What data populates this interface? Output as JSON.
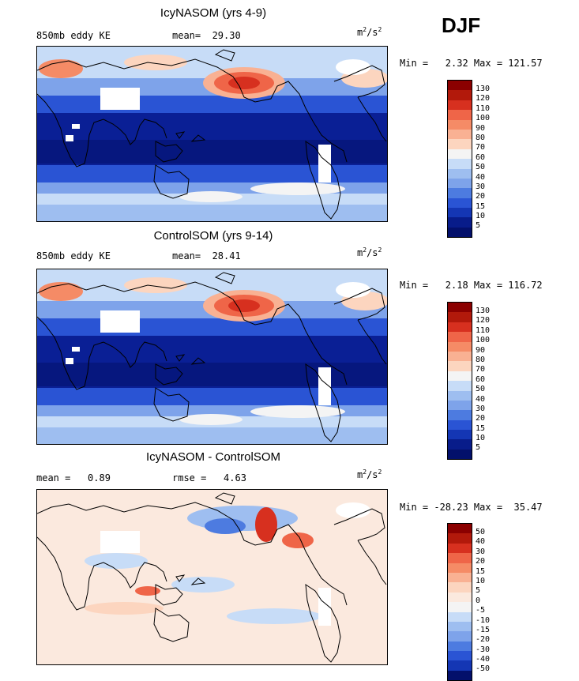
{
  "season": "DJF",
  "panels": [
    {
      "title": "IcyNASOM (yrs 4-9)",
      "left_label": "850mb eddy KE",
      "middle_label": "mean=  29.30",
      "units_base": "m",
      "units_exp1": "2",
      "units_mid": "/s",
      "units_exp2": "2",
      "minmax": "Min =   2.32 Max = 121.57",
      "colorbar_ticks": [
        "130",
        "120",
        "110",
        "100",
        "90",
        "80",
        "70",
        "60",
        "50",
        "40",
        "30",
        "20",
        "15",
        "10",
        "5"
      ],
      "colorbar_colors": [
        "#8b0000",
        "#b2190b",
        "#d7301f",
        "#ef6548",
        "#f58b66",
        "#f9b193",
        "#fcd5bf",
        "#f4f4f4",
        "#c7dcf7",
        "#9ebef0",
        "#7ea3ea",
        "#4d7be0",
        "#2a54d4",
        "#1436b4",
        "#081c8a",
        "#03106b"
      ],
      "kind": "abs"
    },
    {
      "title": "ControlSOM (yrs 9-14)",
      "left_label": "850mb eddy KE",
      "middle_label": "mean=  28.41",
      "units_base": "m",
      "units_exp1": "2",
      "units_mid": "/s",
      "units_exp2": "2",
      "minmax": "Min =   2.18 Max = 116.72",
      "colorbar_ticks": [
        "130",
        "120",
        "110",
        "100",
        "90",
        "80",
        "70",
        "60",
        "50",
        "40",
        "30",
        "20",
        "15",
        "10",
        "5"
      ],
      "colorbar_colors": [
        "#8b0000",
        "#b2190b",
        "#d7301f",
        "#ef6548",
        "#f58b66",
        "#f9b193",
        "#fcd5bf",
        "#f4f4f4",
        "#c7dcf7",
        "#9ebef0",
        "#7ea3ea",
        "#4d7be0",
        "#2a54d4",
        "#1436b4",
        "#081c8a",
        "#03106b"
      ],
      "kind": "abs"
    },
    {
      "title": "IcyNASOM - ControlSOM",
      "left_label": "mean =   0.89",
      "middle_label": "rmse =   4.63",
      "units_base": "m",
      "units_exp1": "2",
      "units_mid": "/s",
      "units_exp2": "2",
      "minmax": "Min = -28.23 Max =  35.47",
      "colorbar_ticks": [
        "50",
        "40",
        "30",
        "20",
        "15",
        "10",
        "5",
        "0",
        "-5",
        "-10",
        "-15",
        "-20",
        "-30",
        "-40",
        "-50"
      ],
      "colorbar_colors": [
        "#8b0000",
        "#b2190b",
        "#d7301f",
        "#ef6548",
        "#f58b66",
        "#f9b193",
        "#fcd5bf",
        "#fbe9de",
        "#f4f4f4",
        "#c7dcf7",
        "#9ebef0",
        "#7ea3ea",
        "#4d7be0",
        "#2a54d4",
        "#1436b4",
        "#03106b"
      ],
      "kind": "diff"
    }
  ]
}
